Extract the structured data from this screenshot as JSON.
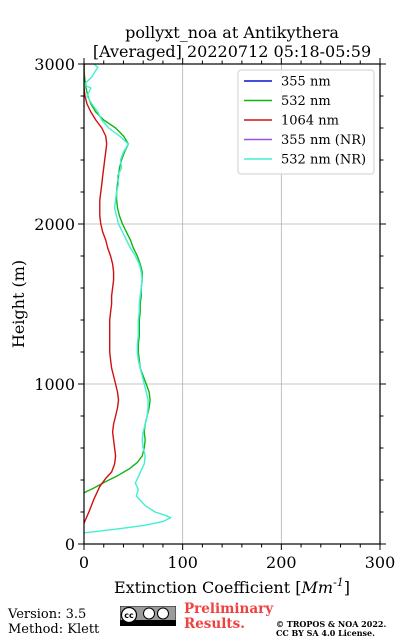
{
  "chart_data": {
    "type": "line",
    "title": [
      "pollyxt_noa at Antikythera",
      "[Averaged] 20220712 05:18-05:59"
    ],
    "xlabel": "Extinction Coefficient [",
    "xlabel_unit": "Mm",
    "xlabel_exp": "-1",
    "xlabel_end": "]",
    "ylabel": "Height (m)",
    "xlim": [
      0,
      300
    ],
    "ylim": [
      0,
      3000
    ],
    "xticks": [
      0,
      100,
      200,
      300
    ],
    "yticks": [
      0,
      1000,
      2000,
      3000
    ],
    "grid": true,
    "legend_position": "top-right",
    "series": [
      {
        "name": "355 nm",
        "color": "#0a14d0",
        "points": []
      },
      {
        "name": "532 nm",
        "color": "#14b414",
        "points": [
          [
            0,
            320
          ],
          [
            10,
            350
          ],
          [
            22,
            390
          ],
          [
            35,
            430
          ],
          [
            46,
            470
          ],
          [
            54,
            510
          ],
          [
            59,
            550
          ],
          [
            61,
            600
          ],
          [
            62,
            650
          ],
          [
            61,
            700
          ],
          [
            62,
            750
          ],
          [
            64,
            800
          ],
          [
            66,
            850
          ],
          [
            67,
            900
          ],
          [
            66,
            950
          ],
          [
            63,
            1000
          ],
          [
            60,
            1050
          ],
          [
            57,
            1100
          ],
          [
            56,
            1150
          ],
          [
            55,
            1200
          ],
          [
            55,
            1250
          ],
          [
            56,
            1300
          ],
          [
            56,
            1350
          ],
          [
            56,
            1400
          ],
          [
            57,
            1450
          ],
          [
            57,
            1500
          ],
          [
            58,
            1550
          ],
          [
            58,
            1600
          ],
          [
            59,
            1650
          ],
          [
            59,
            1700
          ],
          [
            57,
            1750
          ],
          [
            54,
            1800
          ],
          [
            50,
            1850
          ],
          [
            47,
            1900
          ],
          [
            43,
            1950
          ],
          [
            39,
            2000
          ],
          [
            36,
            2050
          ],
          [
            34,
            2100
          ],
          [
            33,
            2150
          ],
          [
            33,
            2200
          ],
          [
            34,
            2250
          ],
          [
            35,
            2300
          ],
          [
            36,
            2350
          ],
          [
            38,
            2400
          ],
          [
            41,
            2450
          ],
          [
            45,
            2500
          ],
          [
            40,
            2550
          ],
          [
            32,
            2600
          ],
          [
            20,
            2650
          ],
          [
            12,
            2700
          ],
          [
            7,
            2750
          ],
          [
            4,
            2800
          ],
          [
            2,
            2850
          ],
          [
            1,
            2900
          ],
          [
            0,
            2950
          ],
          [
            0,
            3000
          ]
        ]
      },
      {
        "name": "1064 nm",
        "color": "#d01010",
        "points": [
          [
            0,
            130
          ],
          [
            5,
            200
          ],
          [
            10,
            280
          ],
          [
            16,
            360
          ],
          [
            22,
            410
          ],
          [
            28,
            450
          ],
          [
            31,
            500
          ],
          [
            32,
            550
          ],
          [
            31,
            600
          ],
          [
            30,
            650
          ],
          [
            29,
            700
          ],
          [
            30,
            750
          ],
          [
            32,
            800
          ],
          [
            34,
            850
          ],
          [
            35,
            900
          ],
          [
            34,
            950
          ],
          [
            32,
            1000
          ],
          [
            30,
            1050
          ],
          [
            28,
            1100
          ],
          [
            27,
            1150
          ],
          [
            26,
            1200
          ],
          [
            26,
            1250
          ],
          [
            26,
            1300
          ],
          [
            26,
            1350
          ],
          [
            26,
            1400
          ],
          [
            27,
            1450
          ],
          [
            28,
            1500
          ],
          [
            28,
            1550
          ],
          [
            29,
            1600
          ],
          [
            30,
            1650
          ],
          [
            30,
            1700
          ],
          [
            29,
            1750
          ],
          [
            27,
            1800
          ],
          [
            24,
            1850
          ],
          [
            22,
            1900
          ],
          [
            19,
            1950
          ],
          [
            17,
            2000
          ],
          [
            16,
            2050
          ],
          [
            16,
            2100
          ],
          [
            16,
            2150
          ],
          [
            17,
            2200
          ],
          [
            18,
            2250
          ],
          [
            19,
            2300
          ],
          [
            20,
            2350
          ],
          [
            21,
            2400
          ],
          [
            22,
            2450
          ],
          [
            23,
            2500
          ],
          [
            22,
            2550
          ],
          [
            18,
            2600
          ],
          [
            12,
            2650
          ],
          [
            7,
            2700
          ],
          [
            3,
            2750
          ],
          [
            1,
            2800
          ],
          [
            0,
            2850
          ],
          [
            0,
            3000
          ]
        ]
      },
      {
        "name": "355 nm (NR)",
        "color": "#9a50e0",
        "points": []
      },
      {
        "name": "532 nm (NR)",
        "color": "#40f0d0",
        "points": [
          [
            0,
            70
          ],
          [
            15,
            80
          ],
          [
            35,
            95
          ],
          [
            60,
            115
          ],
          [
            80,
            140
          ],
          [
            88,
            165
          ],
          [
            82,
            180
          ],
          [
            72,
            200
          ],
          [
            62,
            240
          ],
          [
            53,
            300
          ],
          [
            55,
            340
          ],
          [
            52,
            380
          ],
          [
            55,
            420
          ],
          [
            58,
            460
          ],
          [
            61,
            500
          ],
          [
            62,
            550
          ],
          [
            60,
            600
          ],
          [
            59,
            650
          ],
          [
            60,
            700
          ],
          [
            62,
            750
          ],
          [
            64,
            800
          ],
          [
            65,
            850
          ],
          [
            65,
            900
          ],
          [
            63,
            950
          ],
          [
            61,
            1000
          ],
          [
            59,
            1050
          ],
          [
            57,
            1100
          ],
          [
            55,
            1150
          ],
          [
            54,
            1200
          ],
          [
            54,
            1250
          ],
          [
            55,
            1300
          ],
          [
            55,
            1350
          ],
          [
            55,
            1400
          ],
          [
            56,
            1450
          ],
          [
            56,
            1500
          ],
          [
            57,
            1550
          ],
          [
            58,
            1600
          ],
          [
            59,
            1650
          ],
          [
            58,
            1700
          ],
          [
            56,
            1750
          ],
          [
            52,
            1800
          ],
          [
            47,
            1850
          ],
          [
            43,
            1900
          ],
          [
            39,
            1950
          ],
          [
            35,
            2000
          ],
          [
            33,
            2050
          ],
          [
            31,
            2100
          ],
          [
            32,
            2150
          ],
          [
            33,
            2200
          ],
          [
            35,
            2250
          ],
          [
            34,
            2300
          ],
          [
            38,
            2350
          ],
          [
            37,
            2400
          ],
          [
            40,
            2450
          ],
          [
            45,
            2500
          ],
          [
            36,
            2550
          ],
          [
            25,
            2600
          ],
          [
            18,
            2650
          ],
          [
            14,
            2700
          ],
          [
            8,
            2750
          ],
          [
            3,
            2800
          ],
          [
            7,
            2850
          ],
          [
            0,
            2870
          ],
          [
            8,
            2920
          ],
          [
            14,
            2980
          ],
          [
            10,
            3000
          ]
        ]
      }
    ]
  },
  "footer": {
    "version": "Version: 3.5",
    "method": "Method: Klett",
    "cc_text": "cc",
    "preliminary_line1": "Preliminary",
    "preliminary_line2": "Results.",
    "copyright_line1": "© TROPOS & NOA 2022.",
    "copyright_line2": "CC BY SA 4.0 License."
  }
}
